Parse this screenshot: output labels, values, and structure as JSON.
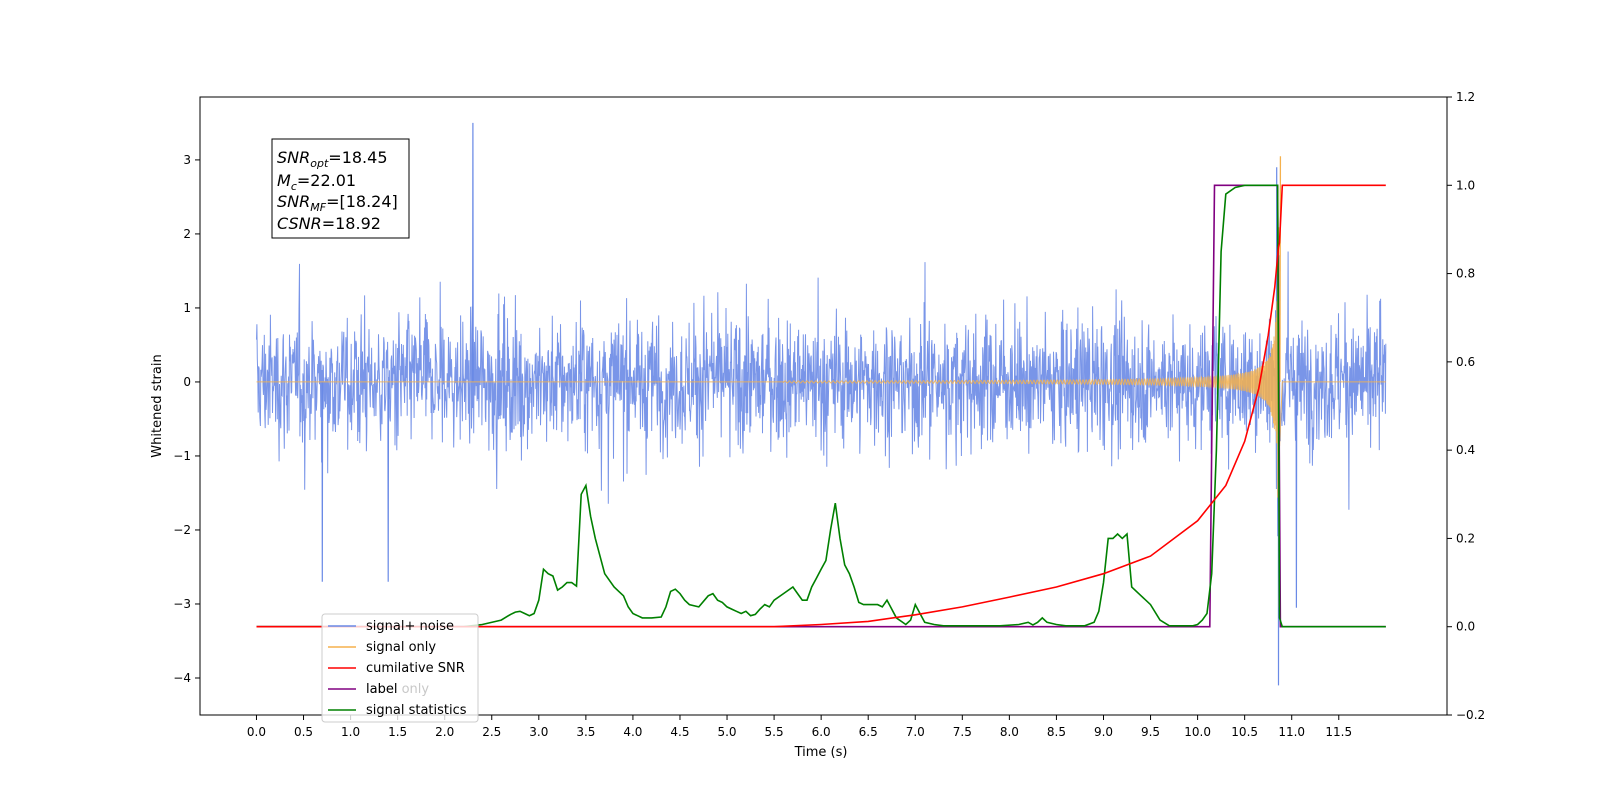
{
  "chart_data": {
    "type": "line",
    "title": "",
    "xlabel": "Time (s)",
    "ylabel": "Whitened strain",
    "xlim": [
      -0.6,
      12.65
    ],
    "ylim": [
      -4.5,
      3.85
    ],
    "y2lim": [
      -0.2,
      1.2
    ],
    "grid": false,
    "xticks": [
      "0.0",
      "0.5",
      "1.0",
      "1.5",
      "2.0",
      "2.5",
      "3.0",
      "3.5",
      "4.0",
      "4.5",
      "5.0",
      "5.5",
      "6.0",
      "6.5",
      "7.0",
      "7.5",
      "8.0",
      "8.5",
      "9.0",
      "9.5",
      "10.0",
      "10.5",
      "11.0",
      "11.5"
    ],
    "yticks": [
      "3",
      "2",
      "1",
      "0",
      "−1",
      "−2",
      "−3",
      "−4"
    ],
    "y2ticks": [
      "1.2",
      "1.0",
      "0.8",
      "0.6",
      "0.4",
      "0.2",
      "0.0",
      "−0.2"
    ],
    "annotation": {
      "snr_opt": "18.45",
      "mc": "22.01",
      "snr_mf": "[18.24]",
      "csnr": "18.92"
    },
    "legend_position": "lower-left",
    "series": [
      {
        "name": "signal+ noise",
        "axis": "left",
        "color": "#6a8ae6",
        "description": "noisy whitened strain spanning roughly -1.5..1.5 with peaks near 3.5 (t=2.3) and -4.1 (t=10.87)",
        "x_range": [
          0,
          12.0
        ]
      },
      {
        "name": "signal only",
        "axis": "left",
        "color": "#f5b14d",
        "chirp_start": 5.6,
        "merger_t": 10.87,
        "peak_amplitude": 3.05
      },
      {
        "name": "cumilative SNR",
        "axis": "right",
        "color": "#ff0000",
        "x": [
          0,
          5.5,
          6.0,
          6.5,
          7.0,
          7.5,
          8.0,
          8.5,
          9.0,
          9.5,
          10.0,
          10.3,
          10.5,
          10.65,
          10.75,
          10.82,
          10.86,
          10.87,
          10.9,
          11.0,
          12.0
        ],
        "y": [
          0,
          0,
          0.005,
          0.012,
          0.027,
          0.045,
          0.067,
          0.09,
          0.12,
          0.16,
          0.24,
          0.32,
          0.42,
          0.54,
          0.66,
          0.77,
          0.86,
          0.87,
          1.0,
          1.0,
          1.0
        ]
      },
      {
        "name": "label",
        "axis": "right",
        "color": "#800080",
        "x": [
          0,
          10.13,
          10.18,
          10.85,
          10.88,
          12.0
        ],
        "y": [
          0,
          0,
          1,
          1,
          0,
          0
        ]
      },
      {
        "name": "label only",
        "axis": "right",
        "color": "#d0d0d0",
        "legend_only": true
      },
      {
        "name": "signal statistics",
        "axis": "right",
        "color": "#008000",
        "x": [
          0,
          2.2,
          2.4,
          2.6,
          2.7,
          2.75,
          2.8,
          2.85,
          2.9,
          2.95,
          3.0,
          3.05,
          3.1,
          3.15,
          3.2,
          3.25,
          3.3,
          3.35,
          3.4,
          3.45,
          3.5,
          3.55,
          3.6,
          3.65,
          3.7,
          3.8,
          3.85,
          3.9,
          3.95,
          4.0,
          4.05,
          4.1,
          4.2,
          4.3,
          4.35,
          4.4,
          4.45,
          4.5,
          4.55,
          4.6,
          4.7,
          4.8,
          4.85,
          4.9,
          4.95,
          5.0,
          5.05,
          5.1,
          5.15,
          5.2,
          5.25,
          5.3,
          5.35,
          5.4,
          5.45,
          5.5,
          5.6,
          5.7,
          5.75,
          5.8,
          5.85,
          5.9,
          5.95,
          6.0,
          6.05,
          6.1,
          6.15,
          6.2,
          6.25,
          6.3,
          6.35,
          6.4,
          6.45,
          6.5,
          6.55,
          6.6,
          6.65,
          6.7,
          6.8,
          6.9,
          6.95,
          7.0,
          7.05,
          7.1,
          7.2,
          7.3,
          7.5,
          7.7,
          7.9,
          8.1,
          8.2,
          8.25,
          8.3,
          8.35,
          8.4,
          8.5,
          8.6,
          8.8,
          8.9,
          8.95,
          9.0,
          9.05,
          9.1,
          9.15,
          9.2,
          9.25,
          9.3,
          9.4,
          9.5,
          9.6,
          9.7,
          9.8,
          9.9,
          9.95,
          10.0,
          10.05,
          10.1,
          10.15,
          10.2,
          10.25,
          10.3,
          10.4,
          10.5,
          10.6,
          10.7,
          10.82,
          10.85,
          10.87,
          10.9,
          11.0,
          12.0
        ],
        "y": [
          0,
          0,
          0.005,
          0.015,
          0.028,
          0.033,
          0.035,
          0.03,
          0.025,
          0.03,
          0.06,
          0.13,
          0.12,
          0.115,
          0.083,
          0.09,
          0.1,
          0.1,
          0.092,
          0.3,
          0.32,
          0.25,
          0.2,
          0.16,
          0.12,
          0.09,
          0.08,
          0.07,
          0.045,
          0.03,
          0.025,
          0.02,
          0.02,
          0.022,
          0.045,
          0.08,
          0.085,
          0.075,
          0.06,
          0.05,
          0.045,
          0.07,
          0.075,
          0.06,
          0.055,
          0.045,
          0.04,
          0.035,
          0.03,
          0.035,
          0.025,
          0.028,
          0.04,
          0.05,
          0.045,
          0.06,
          0.075,
          0.09,
          0.075,
          0.06,
          0.06,
          0.09,
          0.11,
          0.13,
          0.15,
          0.22,
          0.28,
          0.2,
          0.14,
          0.12,
          0.09,
          0.055,
          0.05,
          0.05,
          0.05,
          0.05,
          0.045,
          0.06,
          0.02,
          0.005,
          0.015,
          0.05,
          0.03,
          0.01,
          0.005,
          0.002,
          0.002,
          0.002,
          0.002,
          0.005,
          0.01,
          0.004,
          0.01,
          0.02,
          0.01,
          0.005,
          0.002,
          0.002,
          0.01,
          0.035,
          0.1,
          0.2,
          0.2,
          0.21,
          0.2,
          0.21,
          0.09,
          0.07,
          0.05,
          0.015,
          0.002,
          0.002,
          0.002,
          0.002,
          0.005,
          0.015,
          0.03,
          0.12,
          0.4,
          0.85,
          0.98,
          0.995,
          1.0,
          1.0,
          1.0,
          1.0,
          1.0,
          0.02,
          0.0,
          0.0,
          0.0
        ]
      }
    ]
  }
}
